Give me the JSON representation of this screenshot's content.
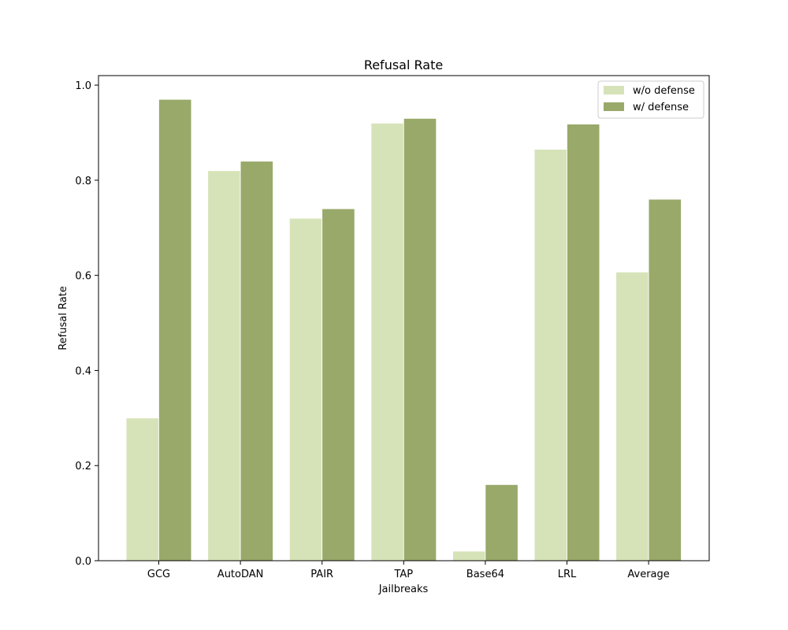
{
  "chart_data": {
    "type": "bar",
    "title": "Refusal Rate",
    "xlabel": "Jailbreaks",
    "ylabel": "Refusal Rate",
    "categories": [
      "GCG",
      "AutoDAN",
      "PAIR",
      "TAP",
      "Base64",
      "LRL",
      "Average"
    ],
    "ylim": [
      0,
      1.02
    ],
    "yticks": [
      0.0,
      0.2,
      0.4,
      0.6,
      0.8,
      1.0
    ],
    "ytick_labels": [
      "0.0",
      "0.2",
      "0.4",
      "0.6",
      "0.8",
      "1.0"
    ],
    "grid": false,
    "legend_position": "top-right",
    "series": [
      {
        "name": "w/o defense",
        "color": "#d6e3b8",
        "values": [
          0.3,
          0.82,
          0.72,
          0.92,
          0.02,
          0.865,
          0.607
        ]
      },
      {
        "name": "w/ defense",
        "color": "#98a96a",
        "values": [
          0.97,
          0.84,
          0.74,
          0.93,
          0.16,
          0.918,
          0.76
        ]
      }
    ]
  }
}
